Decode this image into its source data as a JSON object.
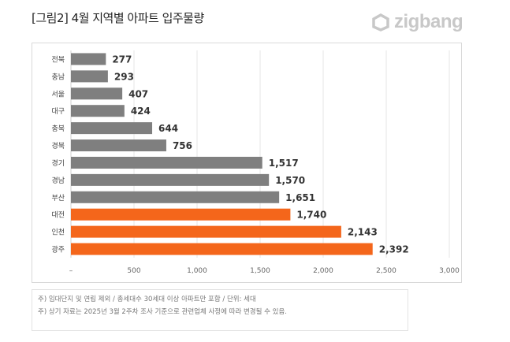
{
  "title": "[그림2] 4월 지역별 아파트 입주물량",
  "logo": "zigbang",
  "colors": {
    "default_bar": "#7f7f7f",
    "highlight_bar": "#f4661b",
    "grid": "#e6e6e6"
  },
  "chart_data": {
    "type": "bar",
    "orientation": "horizontal",
    "categories": [
      "전북",
      "충남",
      "서울",
      "대구",
      "충북",
      "경북",
      "경기",
      "경남",
      "부산",
      "대전",
      "인천",
      "광주"
    ],
    "values": [
      277,
      293,
      407,
      424,
      644,
      756,
      1517,
      1570,
      1651,
      1740,
      2143,
      2392
    ],
    "data_labels": [
      "277",
      "293",
      "407",
      "424",
      "644",
      "756",
      "1,517",
      "1,570",
      "1,651",
      "1,740",
      "2,143",
      "2,392"
    ],
    "highlighted": [
      "대전",
      "인천",
      "광주"
    ],
    "xlim": [
      0,
      3000
    ],
    "x_ticks": [
      0,
      500,
      1000,
      1500,
      2000,
      2500,
      3000
    ],
    "x_tick_labels": [
      "–",
      "500",
      "1,000",
      "1,500",
      "2,000",
      "2,500",
      "3,000"
    ],
    "grid": "vertical",
    "legend": "none"
  },
  "notes": [
    "주) 임대단지 및 연립 제외 / 총세대수 30세대 이상 아파트만 포함 / 단위: 세대",
    "주) 상기 자료는 2025년 3월 2주차 조사 기준으로 관련업체 사정에 따라 변경될 수 있음."
  ]
}
